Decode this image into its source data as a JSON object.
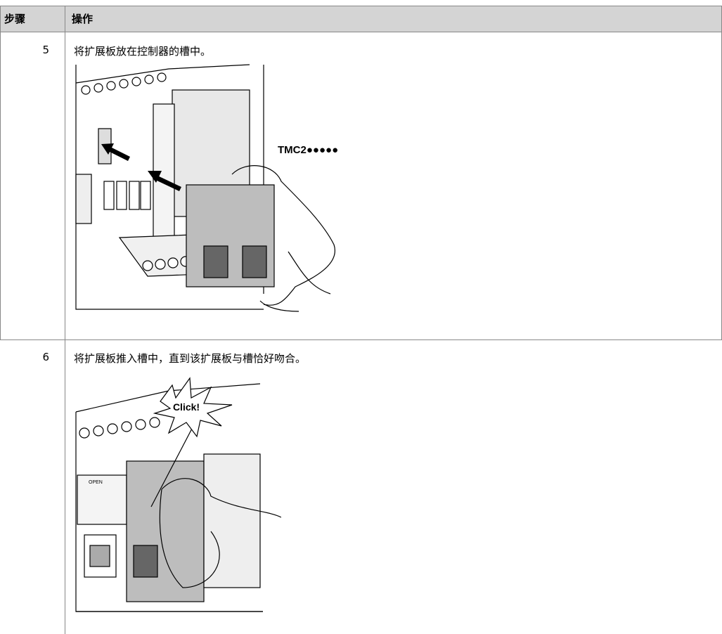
{
  "table": {
    "header": [
      "步骤",
      "操作"
    ],
    "rows": [
      {
        "step": "5",
        "action": "将扩展板放在控制器的槽中。",
        "figure": {
          "label": "TMC2●●●●●"
        }
      },
      {
        "step": "6",
        "action": "将扩展板推入槽中，直到该扩展板与槽恰好吻合。",
        "figure": {
          "callout": "Click!",
          "label": "OPEN"
        }
      }
    ]
  }
}
